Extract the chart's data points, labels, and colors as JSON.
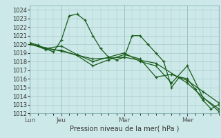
{
  "title": "",
  "xlabel": "Pression niveau de la mer( hPa )",
  "ylabel": "",
  "bg_color": "#cce8e8",
  "grid_color": "#aacccc",
  "line_color": "#1a5c1a",
  "ylim": [
    1012,
    1024.5
  ],
  "yticks": [
    1012,
    1013,
    1014,
    1015,
    1016,
    1017,
    1018,
    1019,
    1020,
    1021,
    1022,
    1023,
    1024
  ],
  "day_labels": [
    "Lun",
    "Jeu",
    "Mar",
    "Mer"
  ],
  "day_positions": [
    0,
    24,
    72,
    120
  ],
  "total_hours": 144,
  "series1": {
    "x": [
      0,
      6,
      12,
      18,
      24,
      30,
      36,
      42,
      48,
      54,
      60,
      66,
      72,
      78,
      84,
      90,
      96,
      102,
      108,
      114,
      120,
      126,
      132,
      138,
      144
    ],
    "y": [
      1020.2,
      1019.9,
      1019.5,
      1019.1,
      1020.5,
      1023.3,
      1023.5,
      1022.8,
      1021.0,
      1019.5,
      1018.5,
      1018.2,
      1018.5,
      1021.0,
      1021.0,
      1020.0,
      1019.0,
      1018.0,
      1015.0,
      1016.2,
      1016.0,
      1014.8,
      1013.5,
      1012.5,
      1013.0
    ]
  },
  "series2": {
    "x": [
      0,
      12,
      24,
      36,
      48,
      60,
      72,
      84,
      96,
      108,
      120,
      132,
      144
    ],
    "y": [
      1020.0,
      1019.5,
      1019.8,
      1018.8,
      1018.0,
      1018.5,
      1019.0,
      1018.0,
      1017.5,
      1015.5,
      1017.5,
      1013.8,
      1012.5
    ]
  },
  "series3": {
    "x": [
      0,
      12,
      24,
      36,
      48,
      60,
      72,
      84,
      96,
      108,
      120,
      132,
      144
    ],
    "y": [
      1020.1,
      1019.4,
      1019.3,
      1018.7,
      1017.5,
      1018.2,
      1018.8,
      1018.3,
      1016.2,
      1016.5,
      1015.8,
      1014.5,
      1013.2
    ]
  },
  "series4": {
    "x": [
      0,
      24,
      48,
      72,
      96,
      120,
      144
    ],
    "y": [
      1020.0,
      1019.2,
      1018.3,
      1018.5,
      1017.8,
      1015.5,
      1012.2
    ]
  }
}
